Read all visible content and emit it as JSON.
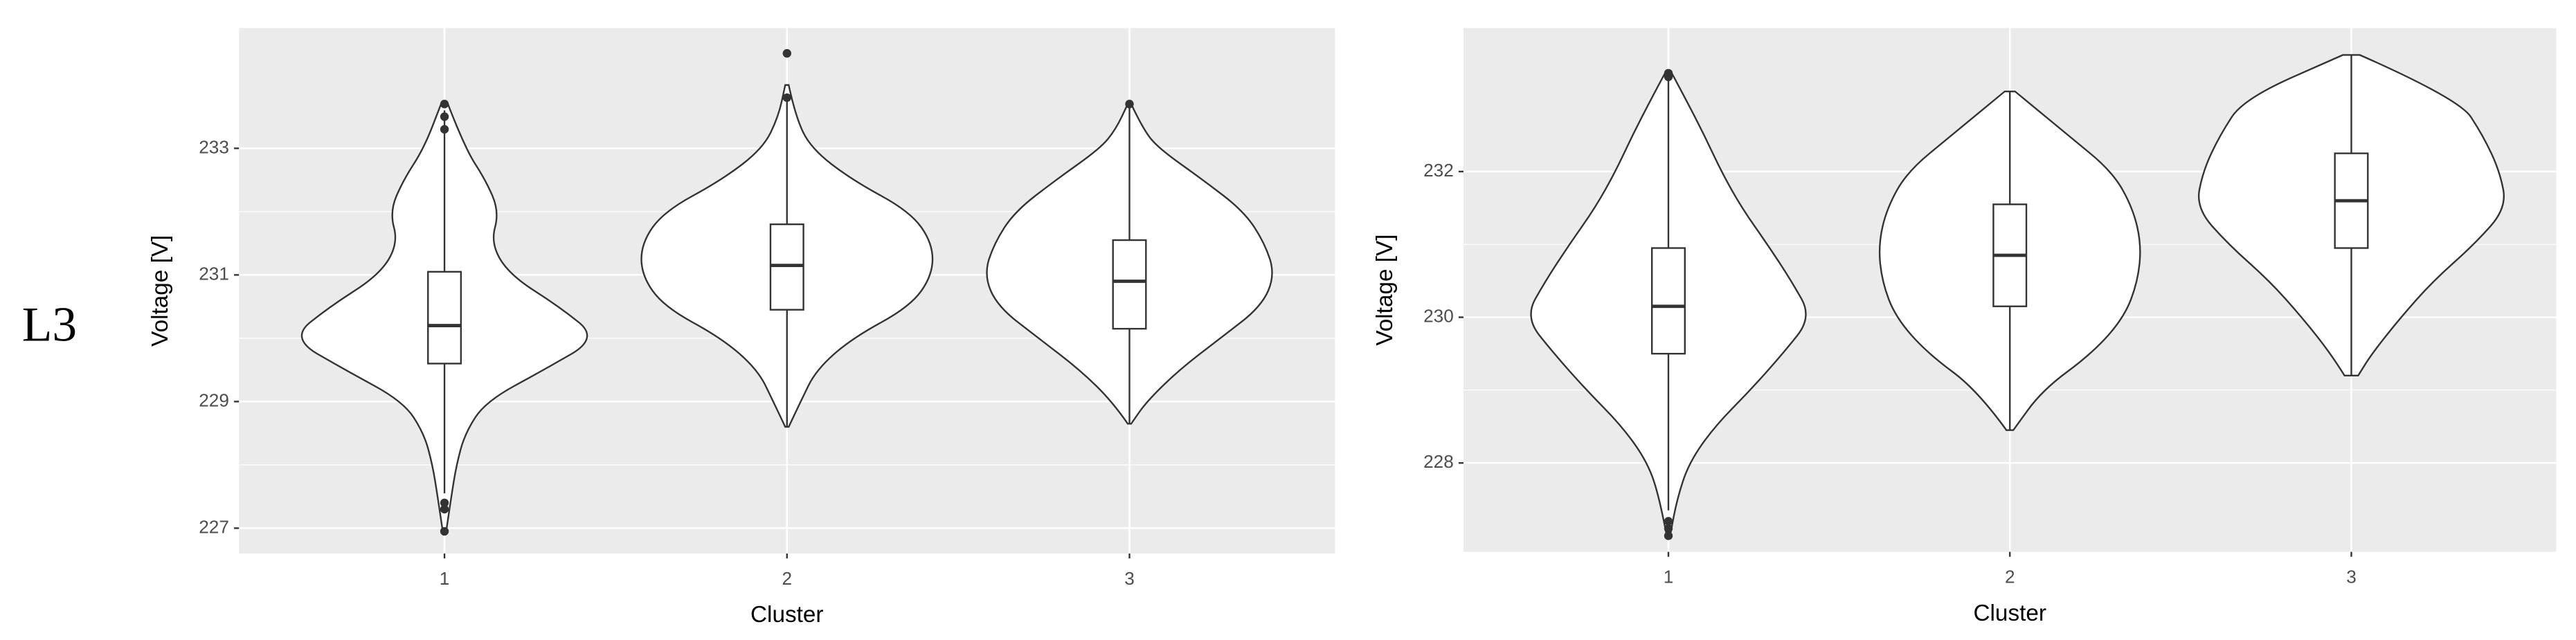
{
  "row_label": "L3",
  "chart_data": [
    {
      "type": "violin",
      "xlabel": "Cluster",
      "ylabel": "Voltage [V]",
      "categories": [
        "1",
        "2",
        "3"
      ],
      "ylim": [
        226.6,
        234.9
      ],
      "yticks": [
        227,
        229,
        231,
        233
      ],
      "grid": true,
      "boxes": [
        {
          "whisker_low": 227.55,
          "q1": 229.6,
          "median": 230.2,
          "q3": 231.05,
          "whisker_high": 233.6
        },
        {
          "whisker_low": 228.6,
          "q1": 230.45,
          "median": 231.15,
          "q3": 231.8,
          "whisker_high": 233.8
        },
        {
          "whisker_low": 228.65,
          "q1": 230.15,
          "median": 230.9,
          "q3": 231.55,
          "whisker_high": 233.7
        }
      ],
      "outliers": [
        [
          233.7,
          233.5,
          233.3,
          227.4,
          227.3,
          226.95
        ],
        [
          234.5,
          233.8
        ],
        [
          233.7
        ]
      ],
      "violins": [
        {
          "y": [
            233.7,
            233,
            232.5,
            232,
            231.5,
            231,
            230.5,
            230,
            229.5,
            229,
            228.5,
            228,
            227.5,
            226.95
          ],
          "width": [
            2,
            12,
            24,
            32,
            27,
            38,
            67,
            90,
            58,
            24,
            12,
            7,
            4,
            1
          ]
        },
        {
          "y": [
            234,
            233.5,
            233,
            232.5,
            232,
            231.5,
            231,
            230.5,
            230,
            229.5,
            229,
            228.6
          ],
          "width": [
            1,
            5,
            14,
            38,
            72,
            85,
            85,
            72,
            38,
            17,
            8,
            1
          ]
        },
        {
          "y": [
            233.7,
            233.3,
            233,
            232.5,
            232,
            231.5,
            231,
            230.5,
            230,
            229.5,
            229,
            228.65
          ],
          "width": [
            1,
            8,
            17,
            43,
            67,
            79,
            85,
            77,
            53,
            29,
            10,
            1
          ]
        }
      ]
    },
    {
      "type": "violin",
      "xlabel": "Cluster",
      "ylabel": "Voltage [V]",
      "categories": [
        "1",
        "2",
        "3"
      ],
      "ylim": [
        226.78,
        233.97
      ],
      "yticks": [
        228,
        230,
        232
      ],
      "grid": true,
      "boxes": [
        {
          "whisker_low": 227.35,
          "q1": 229.5,
          "median": 230.15,
          "q3": 230.95,
          "whisker_high": 233.25
        },
        {
          "whisker_low": 228.45,
          "q1": 230.15,
          "median": 230.85,
          "q3": 231.55,
          "whisker_high": 233.1
        },
        {
          "whisker_low": 229.2,
          "q1": 230.95,
          "median": 231.6,
          "q3": 232.25,
          "whisker_high": 233.6
        }
      ],
      "outliers": [
        [
          233.35,
          233.3,
          227.2,
          227.1,
          227.0
        ],
        [],
        []
      ],
      "violins": [
        {
          "y": [
            233.35,
            233,
            232.5,
            232,
            231.5,
            231,
            230.5,
            230,
            229.5,
            229,
            228.5,
            228,
            227.5,
            227
          ],
          "width": [
            2,
            10,
            21,
            31,
            43,
            58,
            72,
            84,
            67,
            48,
            27,
            12,
            5,
            1
          ]
        },
        {
          "y": [
            233.1,
            232.5,
            232,
            231.5,
            231,
            230.5,
            230,
            229.5,
            229,
            228.45
          ],
          "width": [
            3,
            34,
            60,
            72,
            77,
            75,
            67,
            48,
            19,
            2
          ]
        },
        {
          "y": [
            233.6,
            233,
            232.5,
            232,
            231.5,
            231,
            230.5,
            230,
            229.5,
            229.2
          ],
          "width": [
            5,
            63,
            77,
            87,
            91,
            72,
            48,
            29,
            12,
            4
          ]
        }
      ]
    }
  ]
}
